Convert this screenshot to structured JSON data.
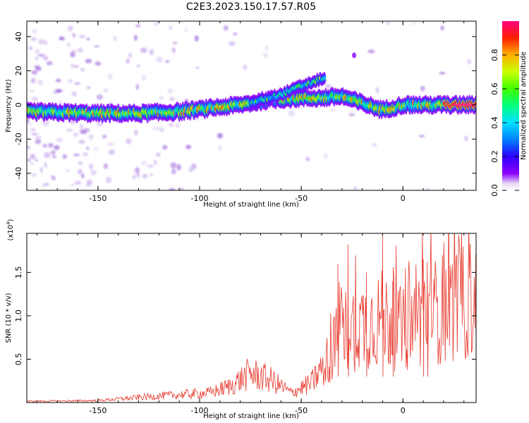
{
  "chart_data": [
    {
      "type": "heatmap",
      "title": "C2E3.2023.150.17.57.R05",
      "xlabel": "Height of straight line (km)",
      "ylabel": "Frequency (Hz)",
      "xlim": [
        -185,
        36
      ],
      "ylim": [
        -50,
        49
      ],
      "xticks": [
        -150,
        -100,
        -50,
        0
      ],
      "yticks": [
        -40,
        -20,
        0,
        20,
        40
      ],
      "colorbar": {
        "label": "Normalized spectral amplitude",
        "range": [
          0,
          1
        ],
        "ticks": [
          "0.0",
          "0.2",
          "0.4",
          "0.6",
          "0.8"
        ]
      },
      "ridges": [
        {
          "name": "main",
          "points": [
            [
              -185,
              -4
            ],
            [
              -150,
              -5
            ],
            [
              -130,
              -5
            ],
            [
              -110,
              -4
            ],
            [
              -95,
              -2
            ],
            [
              -80,
              0
            ],
            [
              -65,
              3
            ],
            [
              -50,
              4
            ],
            [
              -40,
              4
            ],
            [
              -30,
              5
            ],
            [
              -20,
              1
            ],
            [
              -10,
              -3
            ],
            [
              0,
              0
            ],
            [
              10,
              0
            ],
            [
              36,
              0
            ]
          ]
        },
        {
          "name": "upper",
          "points": [
            [
              -75,
              1
            ],
            [
              -60,
              6
            ],
            [
              -50,
              11
            ],
            [
              -38,
              16
            ]
          ]
        }
      ]
    },
    {
      "type": "line",
      "xlabel": "Height of straight line (km)",
      "ylabel": "SNR (10 * v/v)",
      "multiplier": "(x10^4)",
      "multiplier_base": "(x10",
      "multiplier_exp": "4",
      "multiplier_close": ")",
      "xlim": [
        -185,
        36
      ],
      "ylim": [
        0,
        1.95
      ],
      "xticks": [
        -150,
        -100,
        -50,
        0
      ],
      "yticks": [
        "0.5",
        "1.0",
        "1.5"
      ],
      "color": "#e83a2e",
      "envelope": [
        [
          -185,
          0.02
        ],
        [
          -150,
          0.03
        ],
        [
          -130,
          0.08
        ],
        [
          -110,
          0.12
        ],
        [
          -95,
          0.15
        ],
        [
          -85,
          0.25
        ],
        [
          -75,
          0.45
        ],
        [
          -65,
          0.35
        ],
        [
          -55,
          0.15
        ],
        [
          -45,
          0.3
        ],
        [
          -38,
          0.6
        ],
        [
          -30,
          1.1
        ],
        [
          -20,
          1.2
        ],
        [
          -10,
          1.3
        ],
        [
          0,
          1.1
        ],
        [
          10,
          1.35
        ],
        [
          20,
          1.45
        ],
        [
          36,
          1.6
        ]
      ],
      "spikes": [
        [
          -32,
          1.6
        ],
        [
          -27,
          1.82
        ],
        [
          -10,
          1.95
        ],
        [
          -18,
          1.5
        ],
        [
          -5,
          1.4
        ],
        [
          10,
          1.65
        ],
        [
          12,
          1.62
        ]
      ]
    }
  ]
}
